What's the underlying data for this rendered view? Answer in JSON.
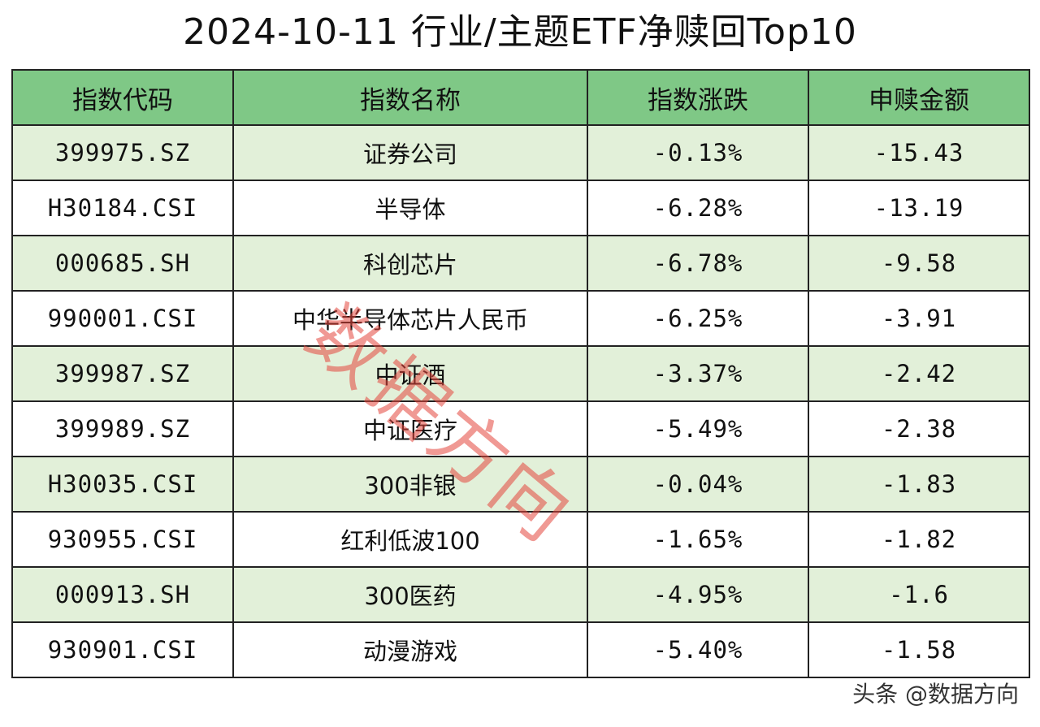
{
  "title": "2024-10-11 行业/主题ETF净赎回Top10",
  "table": {
    "headers": [
      "指数代码",
      "指数名称",
      "指数涨跌",
      "申赎金额"
    ],
    "rows": [
      [
        "399975.SZ",
        "证券公司",
        "-0.13%",
        "-15.43"
      ],
      [
        "H30184.CSI",
        "半导体",
        "-6.28%",
        "-13.19"
      ],
      [
        "000685.SH",
        "科创芯片",
        "-6.78%",
        "-9.58"
      ],
      [
        "990001.CSI",
        "中华半导体芯片人民币",
        "-6.25%",
        "-3.91"
      ],
      [
        "399987.SZ",
        "中证酒",
        "-3.37%",
        "-2.42"
      ],
      [
        "399989.SZ",
        "中证医疗",
        "-5.49%",
        "-2.38"
      ],
      [
        "H30035.CSI",
        "300非银",
        "-0.04%",
        "-1.83"
      ],
      [
        "930955.CSI",
        "红利低波100",
        "-1.65%",
        "-1.82"
      ],
      [
        "000913.SH",
        "300医药",
        "-4.95%",
        "-1.6"
      ],
      [
        "930901.CSI",
        "动漫游戏",
        "-5.40%",
        "-1.58"
      ]
    ]
  },
  "watermark": "数据方向",
  "credit": "头条 @数据方向",
  "colors": {
    "header_bg": "#7fc886",
    "row_alt_bg": "#e2f0d9",
    "watermark": "#e4463c"
  }
}
